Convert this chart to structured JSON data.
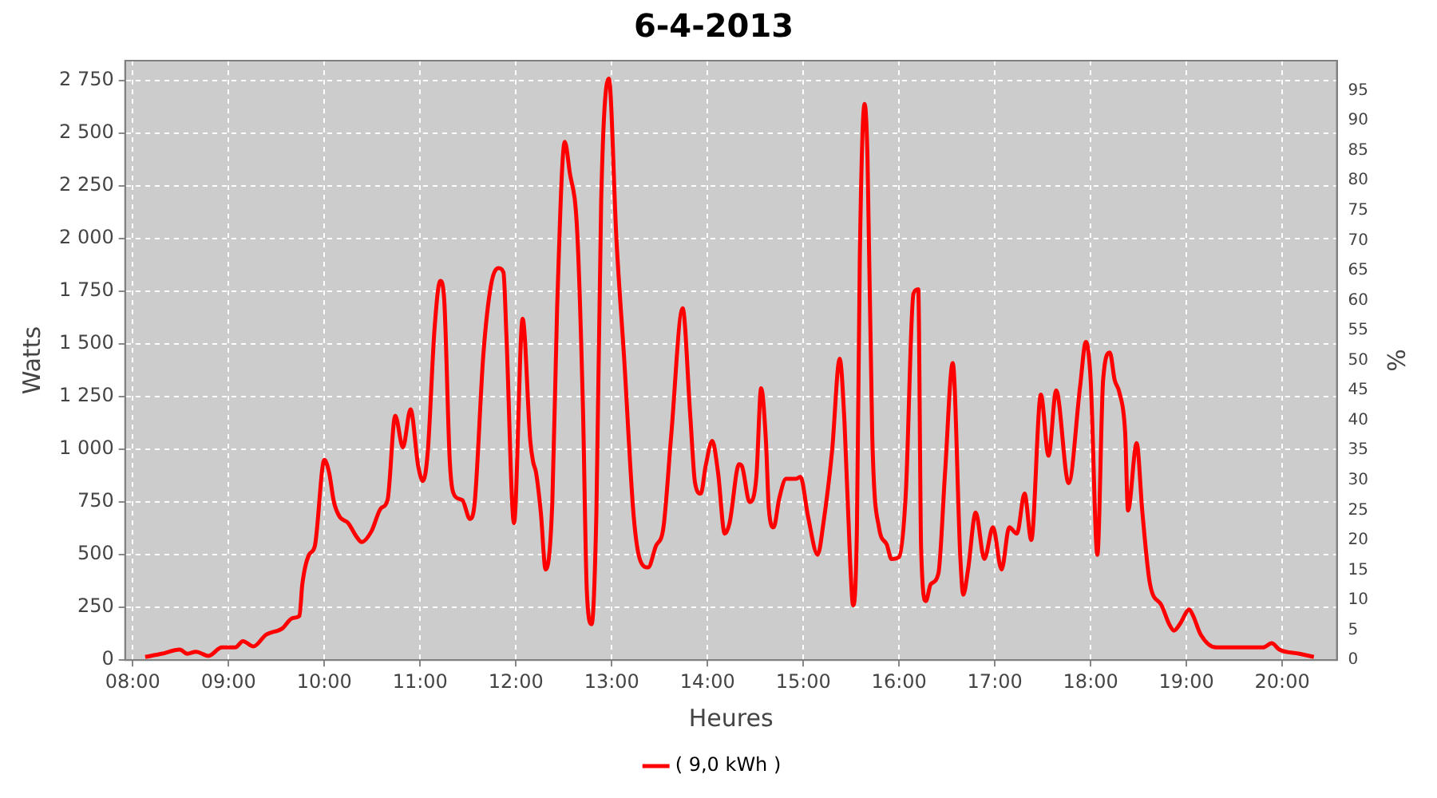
{
  "chart_data": {
    "type": "line",
    "title": "6-4-2013",
    "xlabel": "Heures",
    "ylabel": "Watts",
    "y2label": "%",
    "xlim": [
      7.92,
      20.57
    ],
    "xticks": [
      {
        "value": 8,
        "label": "08:00"
      },
      {
        "value": 9,
        "label": "09:00"
      },
      {
        "value": 10,
        "label": "10:00"
      },
      {
        "value": 11,
        "label": "11:00"
      },
      {
        "value": 12,
        "label": "12:00"
      },
      {
        "value": 13,
        "label": "13:00"
      },
      {
        "value": 14,
        "label": "14:00"
      },
      {
        "value": 15,
        "label": "15:00"
      },
      {
        "value": 16,
        "label": "16:00"
      },
      {
        "value": 17,
        "label": "17:00"
      },
      {
        "value": 18,
        "label": "18:00"
      },
      {
        "value": 19,
        "label": "19:00"
      },
      {
        "value": 20,
        "label": "20:00"
      }
    ],
    "ylim": [
      0,
      2845
    ],
    "yticks": [
      0,
      250,
      500,
      750,
      {
        "value": 1000,
        "label": "1 000"
      },
      {
        "value": 1250,
        "label": "1 250"
      },
      {
        "value": 1500,
        "label": "1 500"
      },
      {
        "value": 1750,
        "label": "1 750"
      },
      {
        "value": 2000,
        "label": "2 000"
      },
      {
        "value": 2250,
        "label": "2 250"
      },
      {
        "value": 2500,
        "label": "2 500"
      },
      {
        "value": 2750,
        "label": "2 750"
      }
    ],
    "y2lim": [
      0,
      100
    ],
    "y2ticks": [
      0,
      5,
      10,
      15,
      20,
      25,
      30,
      35,
      40,
      45,
      50,
      55,
      60,
      65,
      70,
      75,
      80,
      85,
      90,
      95
    ],
    "grid": true,
    "legend": "bottom",
    "marker": "none",
    "x": [
      8.13,
      8.3,
      8.49,
      8.57,
      8.66,
      8.79,
      8.93,
      9.07,
      9.15,
      9.26,
      9.39,
      9.56,
      9.67,
      9.74,
      9.77,
      9.84,
      9.9,
      10.0,
      10.05,
      10.1,
      10.16,
      10.25,
      10.33,
      10.39,
      10.49,
      10.59,
      10.66,
      10.74,
      10.82,
      10.9,
      10.98,
      11.03,
      11.08,
      11.15,
      11.21,
      11.25,
      11.31,
      11.36,
      11.44,
      11.52,
      11.57,
      11.66,
      11.74,
      11.82,
      11.87,
      11.9,
      11.98,
      12.07,
      12.15,
      12.18,
      12.21,
      12.26,
      12.31,
      12.38,
      12.43,
      12.51,
      12.56,
      12.64,
      12.7,
      12.74,
      12.79,
      12.84,
      12.89,
      12.97,
      13.05,
      13.13,
      13.23,
      13.3,
      13.38,
      13.46,
      13.54,
      13.62,
      13.74,
      13.82,
      13.87,
      13.93,
      13.98,
      14.05,
      14.11,
      14.18,
      14.23,
      14.33,
      14.36,
      14.44,
      14.51,
      14.56,
      14.61,
      14.64,
      14.69,
      14.75,
      14.82,
      14.92,
      14.97,
      15.05,
      15.15,
      15.21,
      15.3,
      15.38,
      15.43,
      15.49,
      15.52,
      15.56,
      15.59,
      15.64,
      15.67,
      15.72,
      15.79,
      15.87,
      15.92,
      16.0,
      16.07,
      16.15,
      16.2,
      16.23,
      16.28,
      16.33,
      16.41,
      16.48,
      16.56,
      16.64,
      16.67,
      16.72,
      16.8,
      16.89,
      16.98,
      17.07,
      17.15,
      17.23,
      17.31,
      17.38,
      17.48,
      17.56,
      17.64,
      17.77,
      17.89,
      17.95,
      18.0,
      18.07,
      18.13,
      18.2,
      18.25,
      18.3,
      18.36,
      18.39,
      18.48,
      18.54,
      18.62,
      18.74,
      18.82,
      18.87,
      18.93,
      19.03,
      19.07,
      19.15,
      19.31,
      19.48,
      19.64,
      19.8,
      19.89,
      19.97,
      20.18,
      20.33
    ],
    "series": [
      {
        "name": "( 9,0 kWh )",
        "color": "#ff0000",
        "values": [
          15,
          30,
          50,
          30,
          40,
          20,
          60,
          60,
          90,
          65,
          120,
          150,
          200,
          210,
          360,
          500,
          540,
          950,
          890,
          750,
          680,
          650,
          590,
          560,
          610,
          720,
          760,
          1160,
          1010,
          1190,
          920,
          850,
          990,
          1570,
          1800,
          1720,
          940,
          780,
          760,
          670,
          750,
          1450,
          1780,
          1860,
          1840,
          1550,
          650,
          1620,
          1040,
          940,
          890,
          700,
          430,
          750,
          1670,
          2460,
          2320,
          2030,
          1190,
          330,
          170,
          700,
          2180,
          2760,
          1990,
          1430,
          680,
          470,
          440,
          540,
          630,
          1060,
          1670,
          1160,
          840,
          790,
          920,
          1040,
          890,
          600,
          650,
          930,
          920,
          750,
          870,
          1290,
          1040,
          720,
          630,
          770,
          860,
          860,
          870,
          680,
          500,
          650,
          990,
          1430,
          1130,
          460,
          260,
          630,
          1910,
          2640,
          2390,
          1060,
          630,
          550,
          480,
          490,
          790,
          1740,
          1760,
          530,
          280,
          360,
          410,
          890,
          1410,
          480,
          310,
          430,
          700,
          480,
          630,
          430,
          630,
          600,
          790,
          570,
          1260,
          970,
          1280,
          840,
          1300,
          1510,
          1330,
          500,
          1330,
          1460,
          1330,
          1270,
          1080,
          710,
          1030,
          700,
          360,
          260,
          170,
          140,
          170,
          240,
          210,
          120,
          60,
          60,
          60,
          60,
          80,
          50,
          30,
          15
        ]
      }
    ]
  }
}
